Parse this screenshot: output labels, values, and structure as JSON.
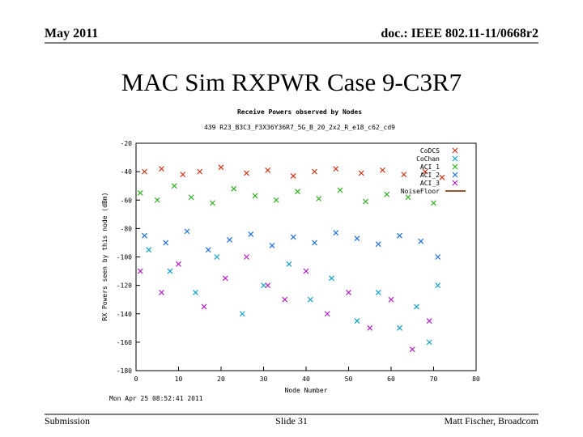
{
  "header": {
    "date": "May 2011",
    "doc": "doc.: IEEE 802.11-11/0668r2"
  },
  "slide_title": "MAC Sim RXPWR Case 9-C3R7",
  "chart_data": {
    "type": "scatter",
    "title": "Receive Powers observed by Nodes",
    "subtitle": "439 R23_B3C3_F3X36Y36R7_5G_B_20_2x2_R_e18_c62_cd9",
    "xlabel": "Node Number",
    "ylabel": "RX Powers seen by this node (dBm)",
    "timestamp": "Mon Apr 25 08:52:41 2011",
    "xlim": [
      0,
      80
    ],
    "xticks": [
      0,
      10,
      20,
      30,
      40,
      50,
      60,
      70,
      80
    ],
    "ylim": [
      -180,
      -20
    ],
    "yticks": [
      -20,
      -40,
      -60,
      -80,
      -100,
      -120,
      -140,
      -160,
      -180
    ],
    "legend": "top-right",
    "series": [
      {
        "name": "CoDCS",
        "color": "#d03010",
        "x": [
          2,
          6,
          11,
          15,
          20,
          26,
          31,
          37,
          42,
          47,
          53,
          58,
          63,
          68,
          72
        ],
        "y": [
          -40,
          -38,
          -42,
          -40,
          -37,
          -41,
          -39,
          -43,
          -40,
          -38,
          -41,
          -39,
          -42,
          -40,
          -44
        ]
      },
      {
        "name": "CoChan",
        "color": "#10a0c8",
        "x": [
          3,
          8,
          14,
          19,
          25,
          30,
          36,
          41,
          46,
          52,
          57,
          62,
          66,
          69,
          71
        ],
        "y": [
          -95,
          -110,
          -125,
          -100,
          -140,
          -120,
          -105,
          -130,
          -115,
          -145,
          -125,
          -150,
          -135,
          -160,
          -120
        ]
      },
      {
        "name": "ACI_1",
        "color": "#30b020",
        "x": [
          1,
          5,
          9,
          13,
          18,
          23,
          28,
          33,
          38,
          43,
          48,
          54,
          59,
          64,
          70
        ],
        "y": [
          -55,
          -60,
          -50,
          -58,
          -62,
          -52,
          -57,
          -60,
          -54,
          -59,
          -53,
          -61,
          -56,
          -58,
          -62
        ]
      },
      {
        "name": "ACI_2",
        "color": "#2070e0",
        "x": [
          2,
          7,
          12,
          17,
          22,
          27,
          32,
          37,
          42,
          47,
          52,
          57,
          62,
          67,
          71
        ],
        "y": [
          -85,
          -90,
          -82,
          -95,
          -88,
          -84,
          -92,
          -86,
          -90,
          -83,
          -87,
          -91,
          -85,
          -89,
          -100
        ]
      },
      {
        "name": "ACI_3",
        "color": "#b020c0",
        "x": [
          1,
          6,
          10,
          16,
          21,
          26,
          31,
          35,
          40,
          45,
          50,
          55,
          60,
          65,
          69
        ],
        "y": [
          -110,
          -125,
          -105,
          -135,
          -115,
          -100,
          -120,
          -130,
          -110,
          -140,
          -125,
          -150,
          -130,
          -165,
          -145
        ]
      },
      {
        "name": "NoiseFloor",
        "color": "#a0522d",
        "x": [],
        "y": []
      }
    ]
  },
  "footer": {
    "left": "Submission",
    "center": "Slide 31",
    "right": "Matt Fischer, Broadcom"
  }
}
